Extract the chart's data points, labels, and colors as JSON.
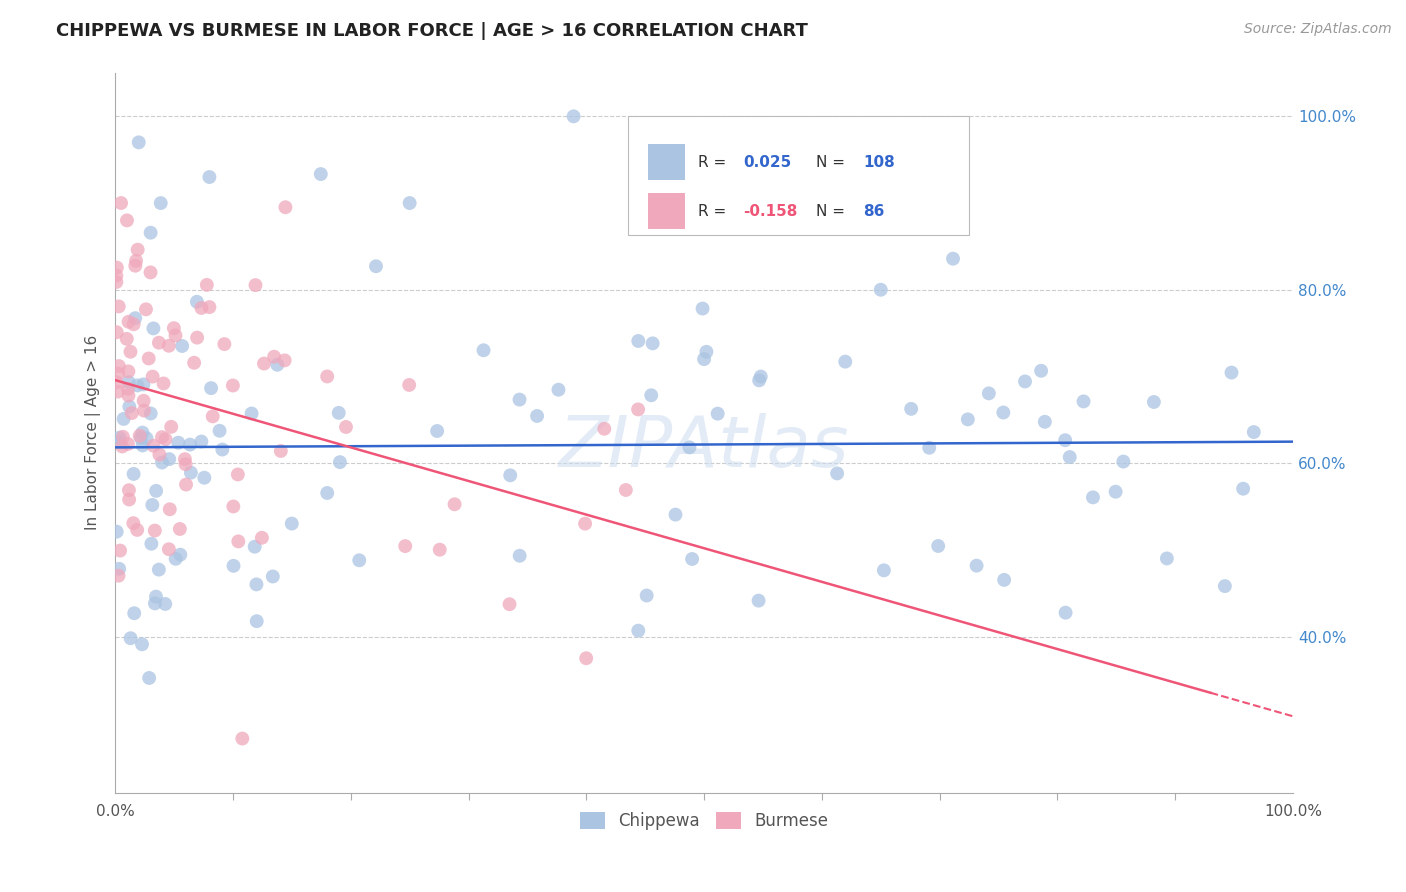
{
  "title": "CHIPPEWA VS BURMESE IN LABOR FORCE | AGE > 16 CORRELATION CHART",
  "source": "Source: ZipAtlas.com",
  "ylabel": "In Labor Force | Age > 16",
  "xlim": [
    0.0,
    1.0
  ],
  "ylim": [
    0.22,
    1.05
  ],
  "y_tick_labels": [
    "40.0%",
    "60.0%",
    "80.0%",
    "100.0%"
  ],
  "y_tick_values": [
    0.4,
    0.6,
    0.8,
    1.0
  ],
  "chippewa_color": "#aac4e2",
  "burmese_color": "#f0a8bc",
  "chippewa_line_color": "#3366cc",
  "burmese_line_color": "#ee5577",
  "R_chippewa": 0.025,
  "N_chippewa": 108,
  "R_burmese": -0.158,
  "N_burmese": 86,
  "background_color": "#ffffff",
  "grid_color": "#cccccc",
  "title_color": "#222222",
  "axis_label_color": "#555555",
  "tick_color": "#4488cc",
  "watermark_color": "#ccddef",
  "watermark_text": "ZIPAtlas"
}
